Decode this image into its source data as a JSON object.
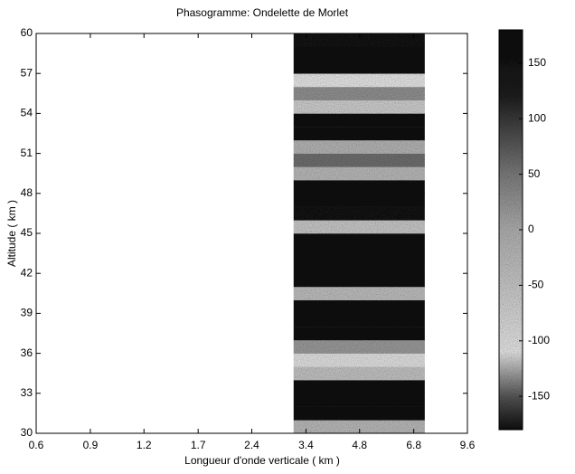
{
  "chart_data": {
    "type": "heatmap",
    "title": "Phasogramme: Ondelette de Morlet",
    "x_label": "Longueur d'onde verticale ( km )",
    "y_label": "Altitude ( km )",
    "xscale": "log",
    "xlim": [
      0.6,
      9.6
    ],
    "xticks": [
      0.6,
      {
        "value": 0.85,
        "label": "0.9"
      },
      1.2,
      1.7,
      2.4,
      3.4,
      4.8,
      6.8,
      9.6
    ],
    "ylim": [
      30,
      60
    ],
    "yticks": [
      30,
      33,
      36,
      39,
      42,
      45,
      48,
      51,
      54,
      57,
      60
    ],
    "x_edges": [
      3.14,
      7.3
    ],
    "y_edges": [
      30,
      31,
      32,
      33,
      34,
      35,
      36,
      37,
      38,
      39,
      40,
      41,
      42,
      43,
      44,
      45,
      46,
      47,
      48,
      49,
      50,
      51,
      52,
      53,
      54,
      55,
      56,
      57,
      58,
      59,
      60
    ],
    "values": [
      -20,
      160,
      170,
      170,
      -40,
      -100,
      20,
      170,
      175,
      165,
      -30,
      160,
      170,
      170,
      165,
      -50,
      150,
      170,
      165,
      -20,
      60,
      -10,
      170,
      170,
      -60,
      30,
      -110,
      160,
      170,
      150
    ],
    "clim": [
      -180,
      180
    ],
    "cticks": [
      -150,
      -100,
      -50,
      0,
      50,
      100,
      150
    ],
    "colormap": [
      [
        -180,
        "#101010"
      ],
      [
        -150,
        "#5a5a5a"
      ],
      [
        -110,
        "#ececec"
      ],
      [
        0,
        "#b4b4b4"
      ],
      [
        50,
        "#808080"
      ],
      [
        120,
        "#202020"
      ],
      [
        180,
        "#0a0a0a"
      ]
    ]
  }
}
